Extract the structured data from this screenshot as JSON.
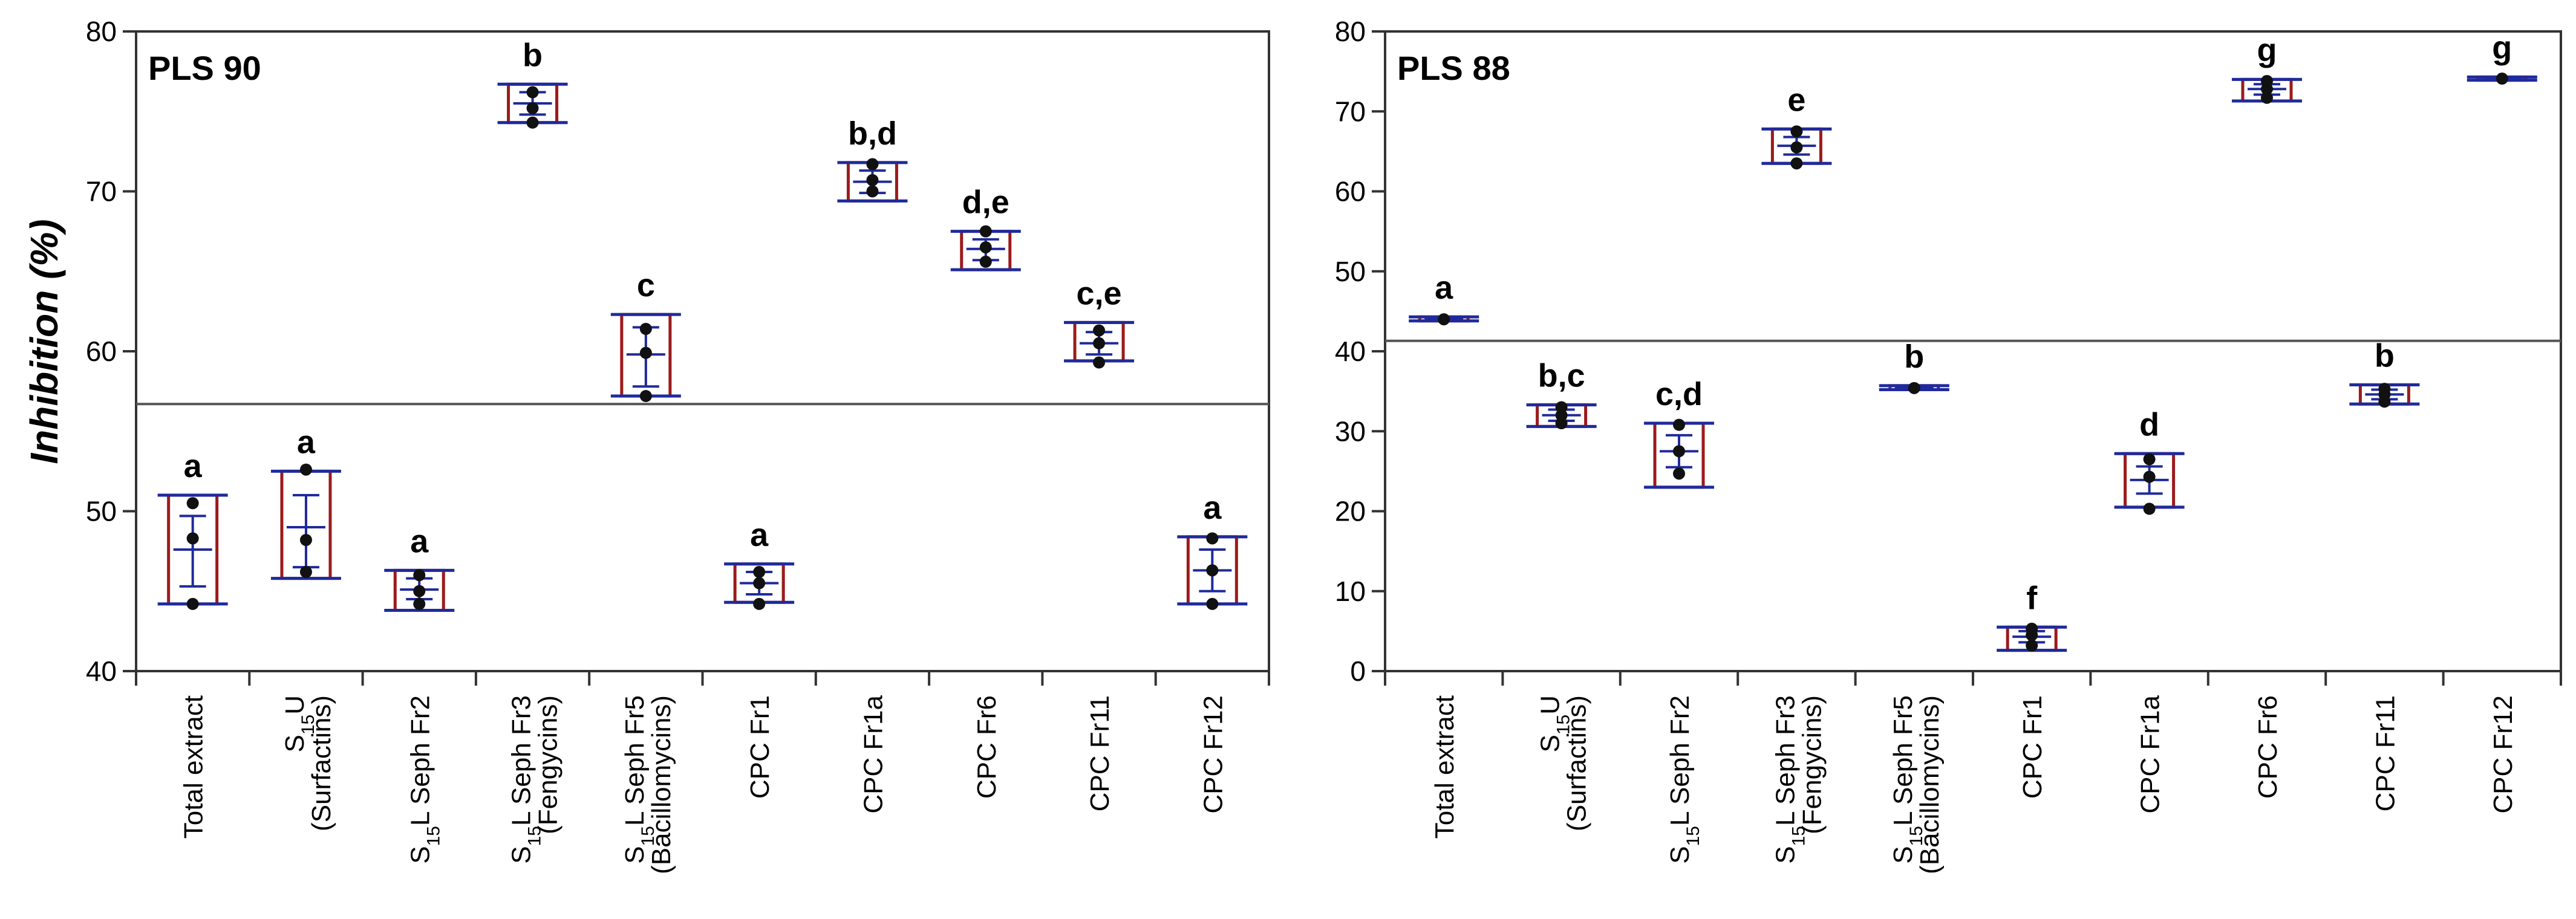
{
  "chart_data": [
    {
      "type": "box",
      "title": "PLS 90",
      "ylabel": "Inhibition (%)",
      "xlabel": "",
      "ylim": [
        40,
        80
      ],
      "yticks": [
        40,
        50,
        60,
        70,
        80
      ],
      "reference_line": 56.7,
      "categories": [
        {
          "main": "Total extract"
        },
        {
          "main": "S",
          "sub": "15",
          "rest": "U",
          "line2": "(Surfactins)"
        },
        {
          "main": "S",
          "sub": "15",
          "rest": "L Seph Fr2"
        },
        {
          "main": "S",
          "sub": "15",
          "rest": "L Seph Fr3",
          "line2": "(Fengycins)"
        },
        {
          "main": "S",
          "sub": "15",
          "rest": "L Seph Fr5",
          "line2": "(Bacillomycins)"
        },
        {
          "main": "CPC Fr1"
        },
        {
          "main": "CPC Fr1a"
        },
        {
          "main": "CPC Fr6"
        },
        {
          "main": "CPC Fr11"
        },
        {
          "main": "CPC Fr12"
        }
      ],
      "boxes": [
        {
          "min": 44.2,
          "max": 51.0,
          "mean": 47.6,
          "sd_low": 45.3,
          "sd_high": 49.7,
          "points": [
            44.2,
            48.3,
            50.5
          ],
          "letter": "a"
        },
        {
          "min": 45.8,
          "max": 52.5,
          "mean": 49.0,
          "sd_low": 46.5,
          "sd_high": 51.0,
          "points": [
            46.2,
            48.2,
            52.6
          ],
          "letter": "a"
        },
        {
          "min": 43.8,
          "max": 46.3,
          "mean": 45.1,
          "sd_low": 44.5,
          "sd_high": 45.8,
          "points": [
            44.2,
            45.0,
            46.0
          ],
          "letter": "a"
        },
        {
          "min": 74.3,
          "max": 76.7,
          "mean": 75.5,
          "sd_low": 74.8,
          "sd_high": 76.2,
          "points": [
            74.3,
            75.2,
            76.2
          ],
          "letter": "b"
        },
        {
          "min": 57.2,
          "max": 62.3,
          "mean": 59.8,
          "sd_low": 57.8,
          "sd_high": 61.5,
          "points": [
            57.2,
            59.9,
            61.4
          ],
          "letter": "c"
        },
        {
          "min": 44.3,
          "max": 46.7,
          "mean": 45.5,
          "sd_low": 44.8,
          "sd_high": 46.2,
          "points": [
            44.2,
            45.5,
            46.2
          ],
          "letter": "a"
        },
        {
          "min": 69.4,
          "max": 71.8,
          "mean": 70.6,
          "sd_low": 69.9,
          "sd_high": 71.3,
          "points": [
            70.0,
            70.7,
            71.7
          ],
          "letter": "b,d"
        },
        {
          "min": 65.1,
          "max": 67.5,
          "mean": 66.4,
          "sd_low": 65.7,
          "sd_high": 67.0,
          "points": [
            65.6,
            66.5,
            67.5
          ],
          "letter": "d,e"
        },
        {
          "min": 59.4,
          "max": 61.8,
          "mean": 60.5,
          "sd_low": 59.8,
          "sd_high": 61.2,
          "points": [
            59.3,
            60.5,
            61.3
          ],
          "letter": "c,e"
        },
        {
          "min": 44.2,
          "max": 48.4,
          "mean": 46.3,
          "sd_low": 45.0,
          "sd_high": 47.6,
          "points": [
            44.2,
            46.3,
            48.3
          ],
          "letter": "a"
        }
      ]
    },
    {
      "type": "box",
      "title": "PLS 88",
      "ylabel": "",
      "xlabel": "",
      "ylim": [
        0,
        80
      ],
      "yticks": [
        0,
        10,
        20,
        30,
        40,
        50,
        60,
        70,
        80
      ],
      "reference_line": 41.3,
      "categories": [
        {
          "main": "Total extract"
        },
        {
          "main": "S",
          "sub": "15",
          "rest": "U",
          "line2": "(Surfactins)"
        },
        {
          "main": "S",
          "sub": "15",
          "rest": "L Seph Fr2"
        },
        {
          "main": "S",
          "sub": "15",
          "rest": "L Seph Fr3",
          "line2": "(Fengycins)"
        },
        {
          "main": "S",
          "sub": "15",
          "rest": "L Seph Fr5",
          "line2": "(Bacillomycins)"
        },
        {
          "main": "CPC Fr1"
        },
        {
          "main": "CPC Fr1a"
        },
        {
          "main": "CPC Fr6"
        },
        {
          "main": "CPC Fr11"
        },
        {
          "main": "CPC Fr12"
        }
      ],
      "boxes": [
        {
          "min": 43.8,
          "max": 44.3,
          "mean": 44.0,
          "sd_low": 43.9,
          "sd_high": 44.2,
          "points": [
            44.0
          ],
          "letter": "a"
        },
        {
          "min": 30.6,
          "max": 33.3,
          "mean": 32.0,
          "sd_low": 31.3,
          "sd_high": 32.7,
          "points": [
            31.0,
            32.0,
            33.0
          ],
          "letter": "b,c"
        },
        {
          "min": 23.0,
          "max": 31.0,
          "mean": 27.5,
          "sd_low": 25.5,
          "sd_high": 29.5,
          "points": [
            24.7,
            27.5,
            30.8
          ],
          "letter": "c,d"
        },
        {
          "min": 63.5,
          "max": 67.8,
          "mean": 65.7,
          "sd_low": 64.6,
          "sd_high": 66.8,
          "points": [
            63.5,
            65.5,
            67.5
          ],
          "letter": "e"
        },
        {
          "min": 35.2,
          "max": 35.7,
          "mean": 35.4,
          "sd_low": 35.3,
          "sd_high": 35.6,
          "points": [
            35.4
          ],
          "letter": "b"
        },
        {
          "min": 2.6,
          "max": 5.5,
          "mean": 4.3,
          "sd_low": 3.6,
          "sd_high": 5.0,
          "points": [
            3.2,
            4.5,
            5.3
          ],
          "letter": "f"
        },
        {
          "min": 20.5,
          "max": 27.2,
          "mean": 23.9,
          "sd_low": 22.2,
          "sd_high": 25.6,
          "points": [
            20.3,
            24.3,
            26.5
          ],
          "letter": "d"
        },
        {
          "min": 71.3,
          "max": 74.0,
          "mean": 72.8,
          "sd_low": 72.1,
          "sd_high": 73.4,
          "points": [
            71.7,
            72.8,
            73.8
          ],
          "letter": "g"
        },
        {
          "min": 33.4,
          "max": 35.8,
          "mean": 34.6,
          "sd_low": 34.0,
          "sd_high": 35.2,
          "points": [
            33.7,
            34.6,
            35.3
          ],
          "letter": "b"
        },
        {
          "min": 73.9,
          "max": 74.3,
          "mean": 74.1,
          "sd_low": 74.0,
          "sd_high": 74.2,
          "points": [
            74.1
          ],
          "letter": "g"
        }
      ]
    }
  ],
  "colors": {
    "box": "#9b1b1b",
    "whisker": "#1f2a9c",
    "point": "#111111",
    "axis": "#333333",
    "refline": "#555555"
  }
}
